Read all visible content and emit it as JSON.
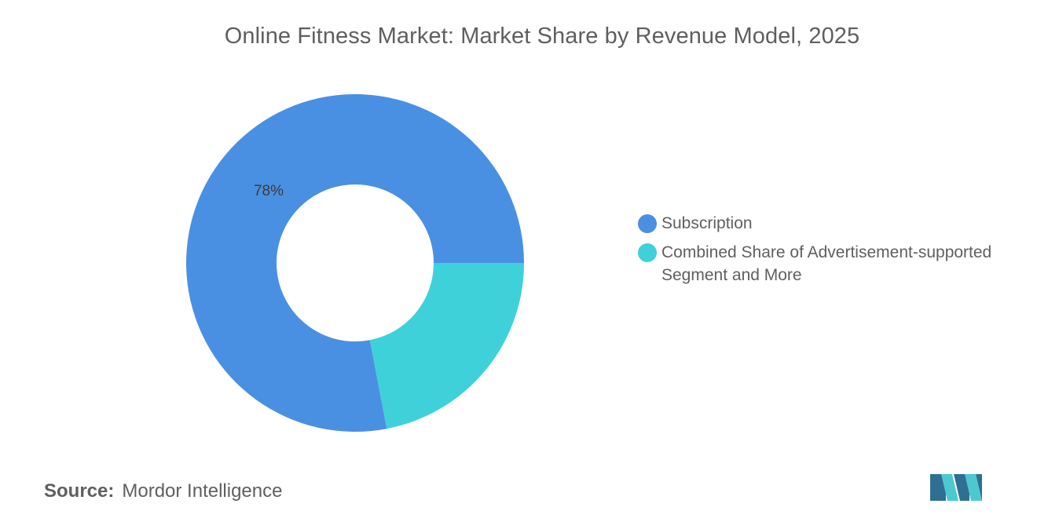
{
  "chart_data": {
    "type": "pie",
    "title": "Online Fitness Market: Market Share by Revenue Model, 2025",
    "categories": [
      "Subscription",
      "Combined Share of Advertisement-supported Segment and More"
    ],
    "values": [
      78,
      22
    ],
    "data_labels": [
      "78%",
      ""
    ],
    "colors": [
      "#4a90e2",
      "#3fd1d9"
    ],
    "donut": true,
    "legend_position": "right"
  },
  "legend": {
    "items": [
      {
        "label": "Subscription",
        "color": "#4a90e2"
      },
      {
        "label": "Combined Share of Advertisement-supported Segment and More",
        "color": "#3fd1d9"
      }
    ]
  },
  "source": {
    "label": "Source:",
    "value": "Mordor Intelligence"
  },
  "logo": {
    "icon": "mordor-intelligence-logo-icon",
    "colors": [
      "#2f6f94",
      "#4cc9cf"
    ]
  }
}
